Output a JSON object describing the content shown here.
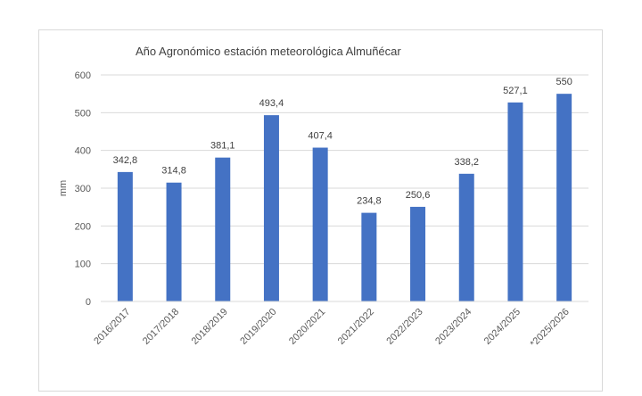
{
  "chart_data": {
    "type": "bar",
    "title": "Año Agronómico estación meteorológica Almuñécar",
    "ylabel": "mm",
    "xlabel": "",
    "ylim": [
      0,
      600
    ],
    "yticks": [
      0,
      100,
      200,
      300,
      400,
      500,
      600
    ],
    "grid": true,
    "bar_color": "#4472C4",
    "categories": [
      "2016/2017",
      "2017/2018",
      "2018/2019",
      "2019/2020",
      "2020/2021",
      "2021/2022",
      "2022/2023",
      "2023/2024",
      "2024/2025",
      "*2025/2026"
    ],
    "values": [
      342.8,
      314.8,
      381.1,
      493.4,
      407.4,
      234.8,
      250.6,
      338.2,
      527.1,
      550
    ],
    "value_labels": [
      "342,8",
      "314,8",
      "381,1",
      "493,4",
      "407,4",
      "234,8",
      "250,6",
      "338,2",
      "527,1",
      "550"
    ]
  }
}
